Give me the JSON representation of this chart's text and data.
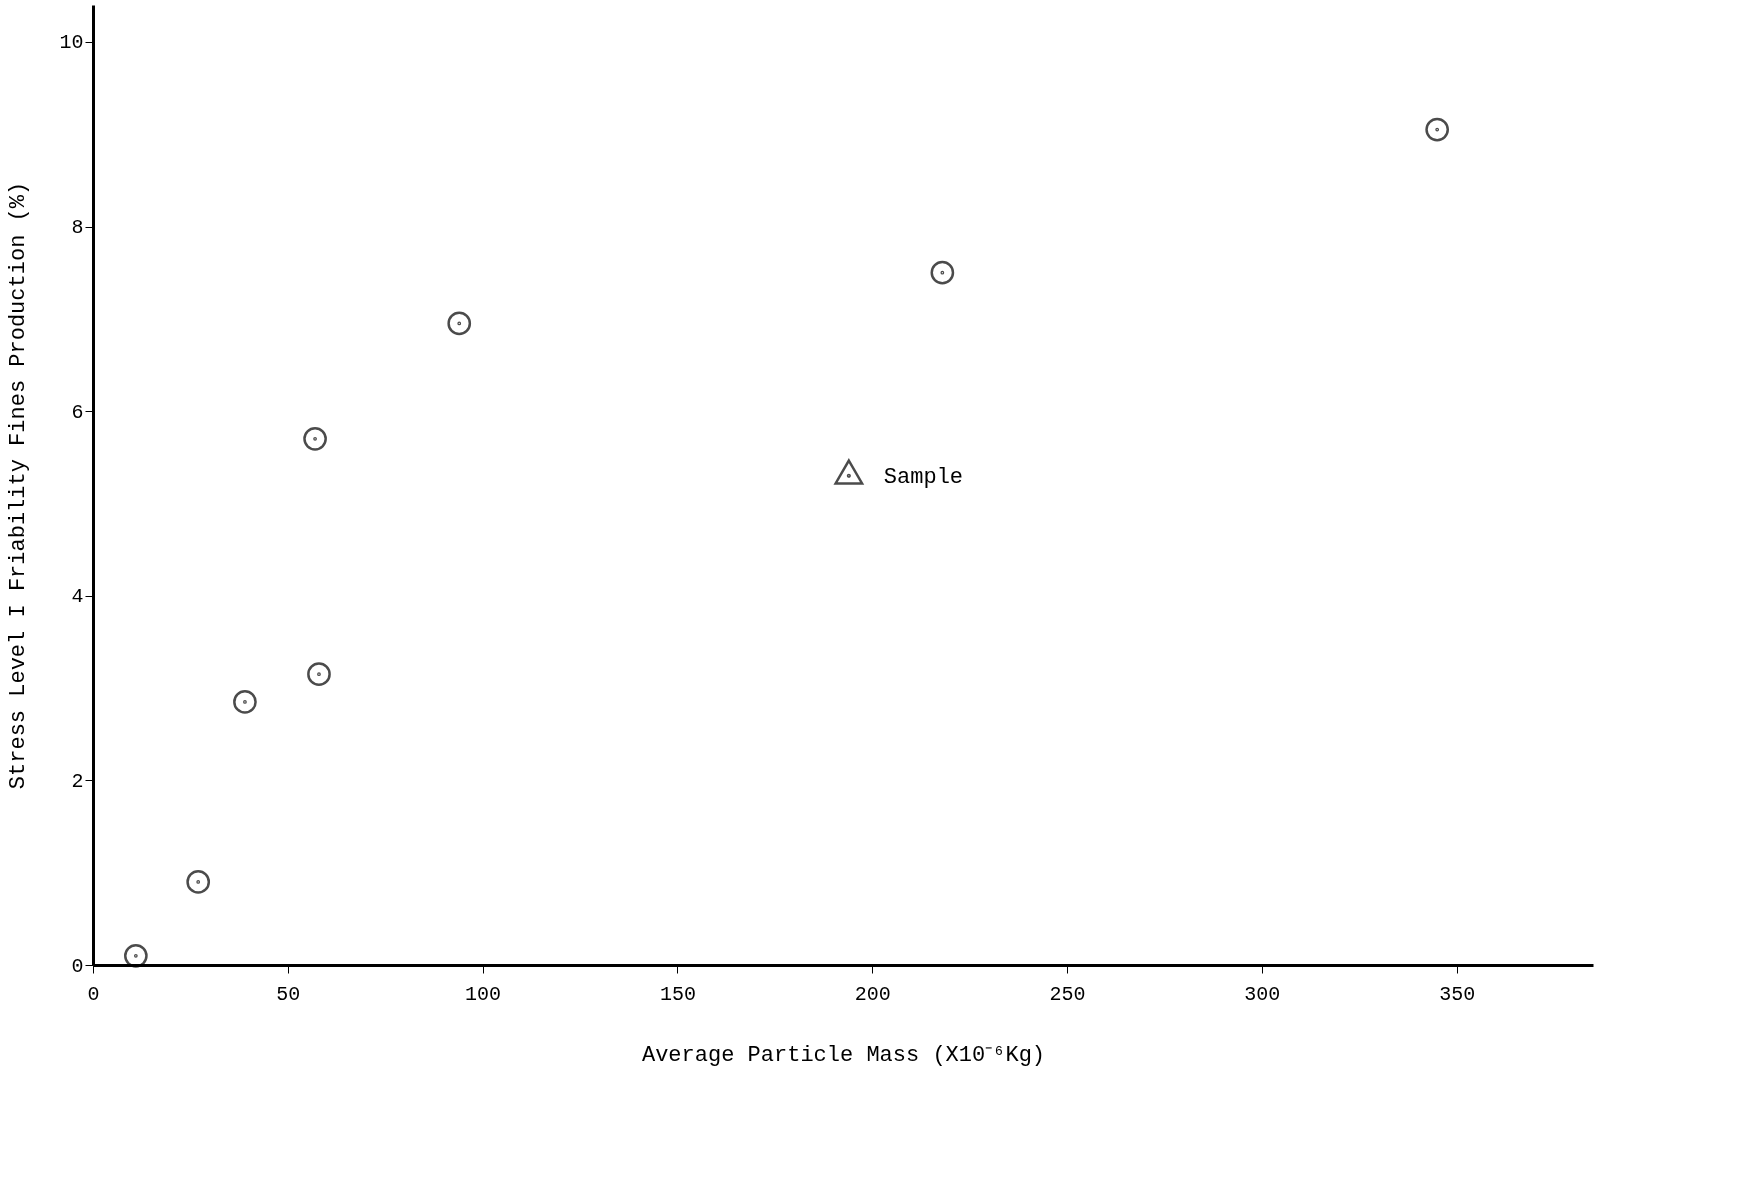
{
  "chart_data": {
    "type": "scatter",
    "xlabel": "Average Particle Mass (X10⁻⁶Kg)",
    "ylabel": "Stress Level I  Friability Fines Production (%)",
    "xlim": [
      0,
      385
    ],
    "xticks": [
      0,
      50,
      100,
      150,
      200,
      250,
      300,
      350
    ],
    "ylim": [
      0,
      10.4
    ],
    "yticks": [
      0,
      2,
      4,
      6,
      8,
      10
    ],
    "series": [
      {
        "color": "#000000",
        "marker": "circle",
        "x": [
          11,
          27,
          39,
          58,
          57,
          94,
          218,
          345
        ],
        "values": [
          0.1,
          0.9,
          2.85,
          3.15,
          5.7,
          6.95,
          7.5,
          9.05
        ]
      },
      {
        "name": "Sample",
        "color": "#000000",
        "marker": "triangle",
        "x": [
          194
        ],
        "values": [
          5.3
        ]
      }
    ]
  }
}
